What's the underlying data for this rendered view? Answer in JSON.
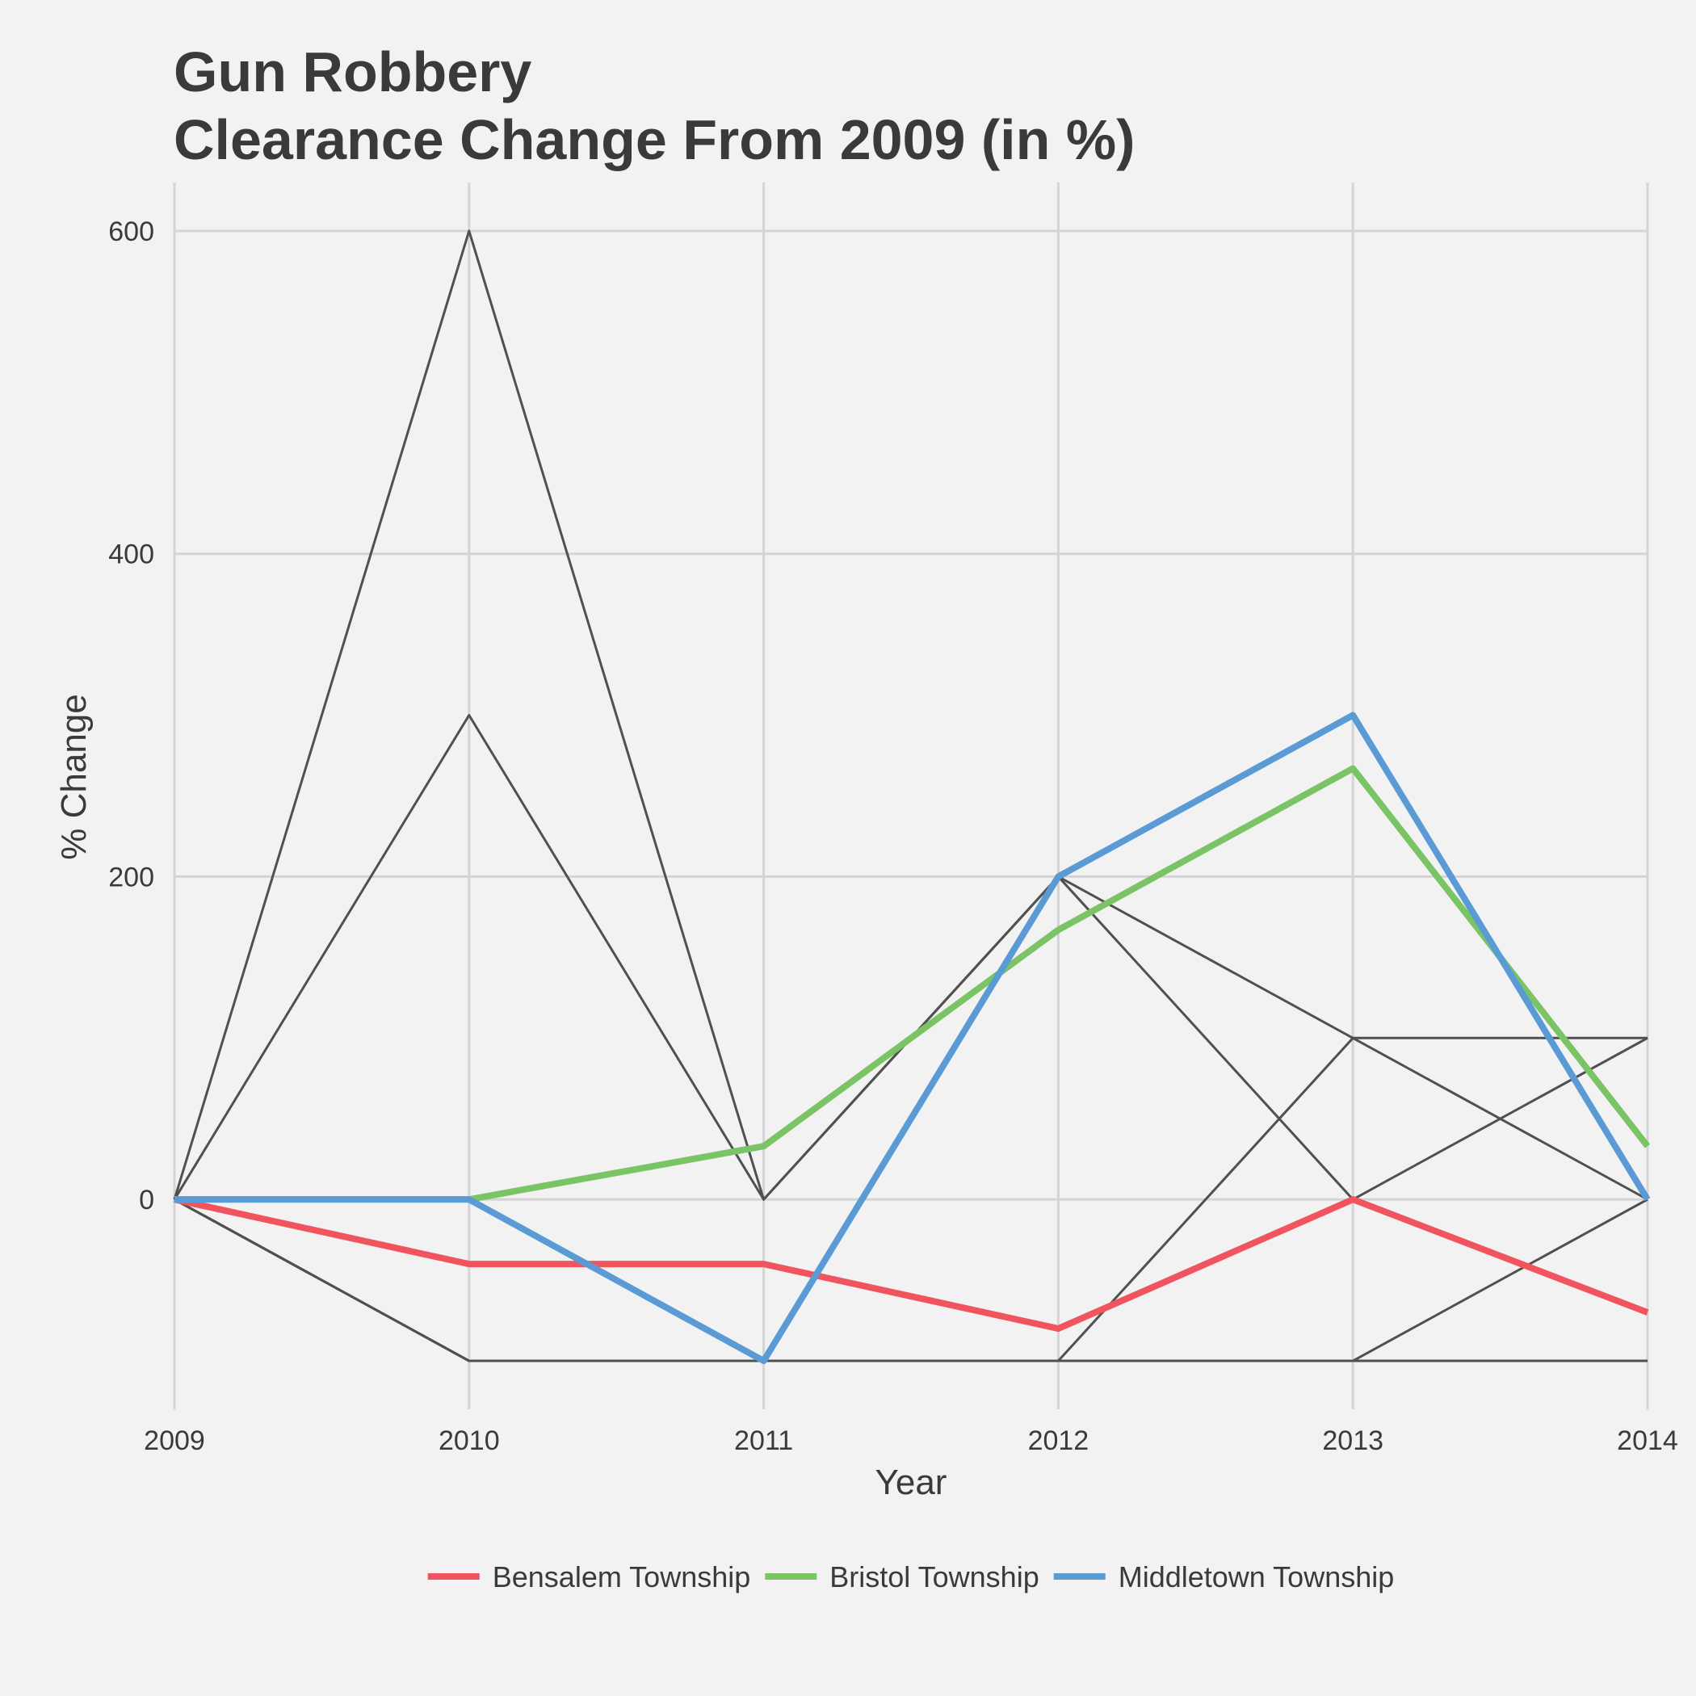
{
  "chart_data": {
    "type": "line",
    "title_lines": [
      "Gun Robbery",
      "Clearance Change From 2009 (in %)"
    ],
    "xlabel": "Year",
    "ylabel": "% Change",
    "x": [
      2009,
      2010,
      2011,
      2012,
      2013,
      2014
    ],
    "xlim": [
      2009,
      2014
    ],
    "ylim": [
      -130,
      630
    ],
    "yticks": [
      0,
      200,
      400,
      600
    ],
    "grid": true,
    "legend_position": "bottom",
    "background_color": "#f2f2f2",
    "highlighted_series": [
      {
        "name": "Bensalem Township",
        "color": "#f0545f",
        "values": [
          0,
          -40,
          -40,
          -80,
          0,
          -70
        ]
      },
      {
        "name": "Bristol Township",
        "color": "#7ac466",
        "values": [
          0,
          0,
          33,
          167,
          267,
          33
        ]
      },
      {
        "name": "Middletown Township",
        "color": "#5b9bd5",
        "values": [
          0,
          0,
          -100,
          200,
          300,
          0
        ]
      }
    ],
    "background_series_color": "#505050",
    "background_series": [
      {
        "values": [
          0,
          600,
          0,
          200,
          0,
          100
        ]
      },
      {
        "values": [
          0,
          300,
          0,
          200,
          100,
          0
        ]
      },
      {
        "values": [
          0,
          -100,
          -100,
          -100,
          -100,
          -100
        ]
      },
      {
        "values": [
          0,
          -100,
          -100,
          -100,
          100,
          100
        ]
      },
      {
        "values": [
          0,
          -100,
          -100,
          -100,
          -100,
          0
        ]
      }
    ]
  }
}
